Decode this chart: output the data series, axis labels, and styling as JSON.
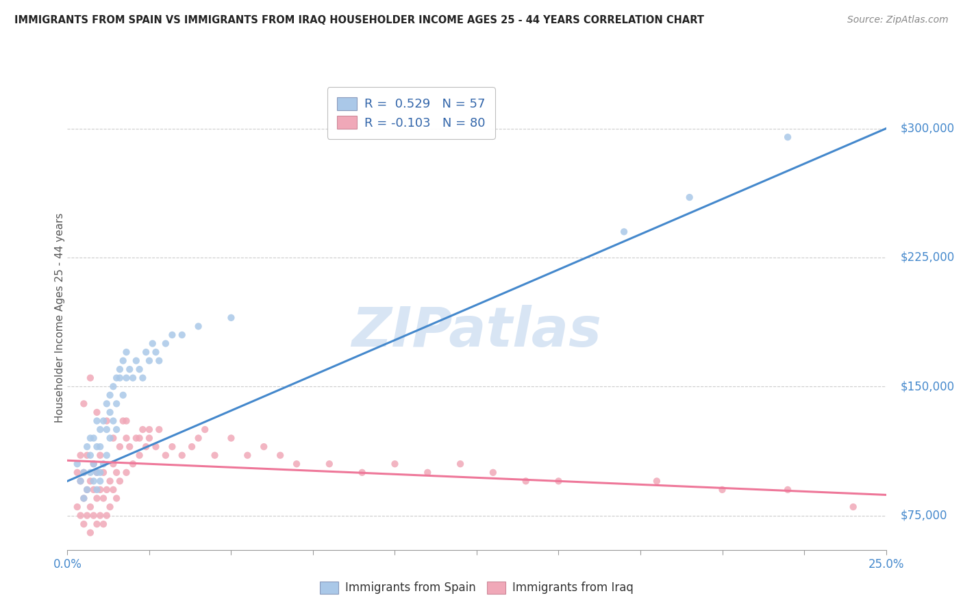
{
  "title": "IMMIGRANTS FROM SPAIN VS IMMIGRANTS FROM IRAQ HOUSEHOLDER INCOME AGES 25 - 44 YEARS CORRELATION CHART",
  "source": "Source: ZipAtlas.com",
  "ylabel": "Householder Income Ages 25 - 44 years",
  "xlim": [
    0.0,
    0.25
  ],
  "ylim": [
    55000,
    325000
  ],
  "xtick_positions": [
    0.0,
    0.025,
    0.05,
    0.075,
    0.1,
    0.125,
    0.15,
    0.175,
    0.2,
    0.225,
    0.25
  ],
  "xtick_labels": [
    "0.0%",
    "",
    "",
    "",
    "",
    "",
    "",
    "",
    "",
    "",
    "25.0%"
  ],
  "yticks_right": [
    75000,
    150000,
    225000,
    300000
  ],
  "ytick_labels_right": [
    "$75,000",
    "$150,000",
    "$225,000",
    "$300,000"
  ],
  "spain_color": "#aac8e8",
  "iraq_color": "#f0a8b8",
  "spain_line_color": "#4488cc",
  "iraq_line_color": "#ee7799",
  "spain_R": 0.529,
  "spain_N": 57,
  "iraq_R": -0.103,
  "iraq_N": 80,
  "legend_text_color": "#3366aa",
  "watermark_text": "ZIPatlas",
  "watermark_color": "#c8daf0",
  "background_color": "#ffffff",
  "grid_color": "#cccccc",
  "title_color": "#222222",
  "axis_label_color": "#555555",
  "tick_color": "#4488cc",
  "spain_line_endpoints": [
    [
      0.0,
      95000
    ],
    [
      0.25,
      300000
    ]
  ],
  "iraq_line_endpoints": [
    [
      0.0,
      107000
    ],
    [
      0.25,
      87000
    ]
  ],
  "spain_scatter_x": [
    0.003,
    0.004,
    0.005,
    0.005,
    0.006,
    0.006,
    0.007,
    0.007,
    0.007,
    0.008,
    0.008,
    0.008,
    0.009,
    0.009,
    0.009,
    0.009,
    0.01,
    0.01,
    0.01,
    0.01,
    0.011,
    0.011,
    0.012,
    0.012,
    0.012,
    0.013,
    0.013,
    0.013,
    0.014,
    0.014,
    0.015,
    0.015,
    0.015,
    0.016,
    0.016,
    0.017,
    0.017,
    0.018,
    0.018,
    0.019,
    0.02,
    0.021,
    0.022,
    0.023,
    0.024,
    0.025,
    0.026,
    0.027,
    0.028,
    0.03,
    0.032,
    0.035,
    0.04,
    0.05,
    0.17,
    0.19,
    0.22
  ],
  "spain_scatter_y": [
    105000,
    95000,
    85000,
    100000,
    90000,
    115000,
    100000,
    120000,
    110000,
    105000,
    95000,
    120000,
    100000,
    115000,
    130000,
    90000,
    100000,
    115000,
    95000,
    125000,
    130000,
    105000,
    125000,
    140000,
    110000,
    135000,
    120000,
    145000,
    130000,
    150000,
    155000,
    140000,
    125000,
    155000,
    160000,
    165000,
    145000,
    155000,
    170000,
    160000,
    155000,
    165000,
    160000,
    155000,
    170000,
    165000,
    175000,
    170000,
    165000,
    175000,
    180000,
    180000,
    185000,
    190000,
    240000,
    260000,
    295000
  ],
  "iraq_scatter_x": [
    0.003,
    0.003,
    0.004,
    0.004,
    0.004,
    0.005,
    0.005,
    0.005,
    0.006,
    0.006,
    0.006,
    0.007,
    0.007,
    0.007,
    0.008,
    0.008,
    0.008,
    0.009,
    0.009,
    0.009,
    0.01,
    0.01,
    0.01,
    0.011,
    0.011,
    0.011,
    0.012,
    0.012,
    0.013,
    0.013,
    0.014,
    0.014,
    0.015,
    0.015,
    0.016,
    0.016,
    0.017,
    0.018,
    0.018,
    0.019,
    0.02,
    0.021,
    0.022,
    0.023,
    0.024,
    0.025,
    0.027,
    0.028,
    0.03,
    0.032,
    0.035,
    0.038,
    0.04,
    0.042,
    0.045,
    0.05,
    0.055,
    0.06,
    0.065,
    0.07,
    0.08,
    0.09,
    0.1,
    0.11,
    0.12,
    0.13,
    0.14,
    0.15,
    0.18,
    0.2,
    0.22,
    0.24,
    0.005,
    0.007,
    0.009,
    0.012,
    0.014,
    0.018,
    0.022,
    0.025
  ],
  "iraq_scatter_y": [
    100000,
    80000,
    95000,
    75000,
    110000,
    85000,
    70000,
    100000,
    90000,
    75000,
    110000,
    80000,
    95000,
    65000,
    90000,
    75000,
    105000,
    85000,
    70000,
    100000,
    90000,
    75000,
    110000,
    85000,
    100000,
    70000,
    90000,
    75000,
    95000,
    80000,
    90000,
    105000,
    85000,
    100000,
    95000,
    115000,
    130000,
    120000,
    100000,
    115000,
    105000,
    120000,
    110000,
    125000,
    115000,
    120000,
    115000,
    125000,
    110000,
    115000,
    110000,
    115000,
    120000,
    125000,
    110000,
    120000,
    110000,
    115000,
    110000,
    105000,
    105000,
    100000,
    105000,
    100000,
    105000,
    100000,
    95000,
    95000,
    95000,
    90000,
    90000,
    80000,
    140000,
    155000,
    135000,
    130000,
    120000,
    130000,
    120000,
    125000
  ]
}
